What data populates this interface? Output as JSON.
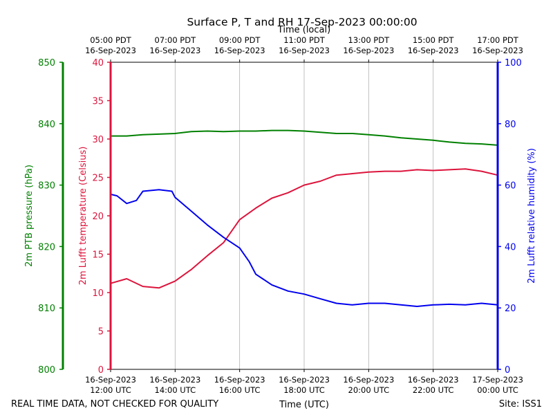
{
  "chart_data": {
    "type": "line",
    "title": "Surface P, T and RH 17-Sep-2023 00:00:00",
    "top_axis_label": "Time (local)",
    "xlabel": "Time (UTC)",
    "footer_left": "REAL TIME DATA, NOT CHECKED FOR QUALITY",
    "footer_right": "Site: ISS1",
    "x_range_utc_hours": [
      12,
      24
    ],
    "bottom_ticks": [
      {
        "line1": "16-Sep-2023",
        "line2": "12:00 UTC"
      },
      {
        "line1": "16-Sep-2023",
        "line2": "14:00 UTC"
      },
      {
        "line1": "16-Sep-2023",
        "line2": "16:00 UTC"
      },
      {
        "line1": "16-Sep-2023",
        "line2": "18:00 UTC"
      },
      {
        "line1": "16-Sep-2023",
        "line2": "20:00 UTC"
      },
      {
        "line1": "16-Sep-2023",
        "line2": "22:00 UTC"
      },
      {
        "line1": "17-Sep-2023",
        "line2": "00:00 UTC"
      }
    ],
    "top_ticks": [
      {
        "line1": "05:00 PDT",
        "line2": "16-Sep-2023"
      },
      {
        "line1": "07:00 PDT",
        "line2": "16-Sep-2023"
      },
      {
        "line1": "09:00 PDT",
        "line2": "16-Sep-2023"
      },
      {
        "line1": "11:00 PDT",
        "line2": "16-Sep-2023"
      },
      {
        "line1": "13:00 PDT",
        "line2": "16-Sep-2023"
      },
      {
        "line1": "15:00 PDT",
        "line2": "16-Sep-2023"
      },
      {
        "line1": "17:00 PDT",
        "line2": "16-Sep-2023"
      }
    ],
    "grid": "vertical",
    "axes": {
      "pressure": {
        "label": "2m PTB pressure (hPa)",
        "ylim": [
          800,
          850
        ],
        "ticks": [
          "800",
          "810",
          "820",
          "830",
          "840",
          "850"
        ],
        "color": "#008000"
      },
      "temperature": {
        "label": "2m Lufft temperature (Celsius)",
        "ylim": [
          0,
          40
        ],
        "ticks": [
          "0",
          "5",
          "10",
          "15",
          "20",
          "25",
          "30",
          "35",
          "40"
        ],
        "color": "#dc143c"
      },
      "humidity": {
        "label": "2m Lufft relative humidity (%)",
        "ylim": [
          0,
          100
        ],
        "ticks": [
          "0",
          "20",
          "40",
          "60",
          "80",
          "100"
        ],
        "color": "#0000ee"
      }
    },
    "series": [
      {
        "axis": "pressure",
        "color": "#008000",
        "x_utc_hours": [
          12.0,
          12.5,
          13.0,
          14.0,
          14.5,
          15.0,
          15.5,
          16.0,
          16.5,
          17.0,
          17.5,
          18.0,
          18.5,
          19.0,
          19.5,
          20.0,
          20.5,
          21.0,
          21.5,
          22.0,
          22.5,
          23.0,
          23.5,
          24.0
        ],
        "values": [
          838.0,
          838.0,
          838.2,
          838.4,
          838.7,
          838.8,
          838.7,
          838.8,
          838.8,
          838.9,
          838.9,
          838.8,
          838.6,
          838.4,
          838.4,
          838.2,
          838.0,
          837.7,
          837.5,
          837.3,
          837.0,
          836.8,
          836.7,
          836.5
        ]
      },
      {
        "axis": "temperature",
        "color": "#dc143c",
        "x_utc_hours": [
          12.0,
          12.5,
          13.0,
          13.5,
          14.0,
          14.5,
          15.0,
          15.5,
          16.0,
          16.5,
          17.0,
          17.5,
          18.0,
          18.5,
          19.0,
          19.5,
          20.0,
          20.5,
          21.0,
          21.5,
          22.0,
          22.5,
          23.0,
          23.5,
          24.0
        ],
        "values": [
          11.2,
          11.8,
          10.8,
          10.6,
          11.5,
          13.0,
          14.8,
          16.5,
          19.5,
          21.0,
          22.3,
          23.0,
          24.0,
          24.5,
          25.3,
          25.5,
          25.7,
          25.8,
          25.8,
          26.0,
          25.9,
          26.0,
          26.1,
          25.8,
          25.3
        ]
      },
      {
        "axis": "humidity",
        "color": "#0000ee",
        "x_utc_hours": [
          12.0,
          12.2,
          12.5,
          12.8,
          13.0,
          13.5,
          13.9,
          14.0,
          14.5,
          15.0,
          15.5,
          16.0,
          16.3,
          16.5,
          17.0,
          17.5,
          18.0,
          18.5,
          19.0,
          19.5,
          20.0,
          20.5,
          21.0,
          21.5,
          22.0,
          22.5,
          23.0,
          23.5,
          24.0
        ],
        "values": [
          57.0,
          56.5,
          54.0,
          55.0,
          58.0,
          58.5,
          58.0,
          56.0,
          51.5,
          47.0,
          43.0,
          39.5,
          35.0,
          31.0,
          27.5,
          25.5,
          24.5,
          23.0,
          21.5,
          21.0,
          21.5,
          21.5,
          21.0,
          20.5,
          21.0,
          21.2,
          21.0,
          21.5,
          21.0
        ]
      }
    ]
  }
}
